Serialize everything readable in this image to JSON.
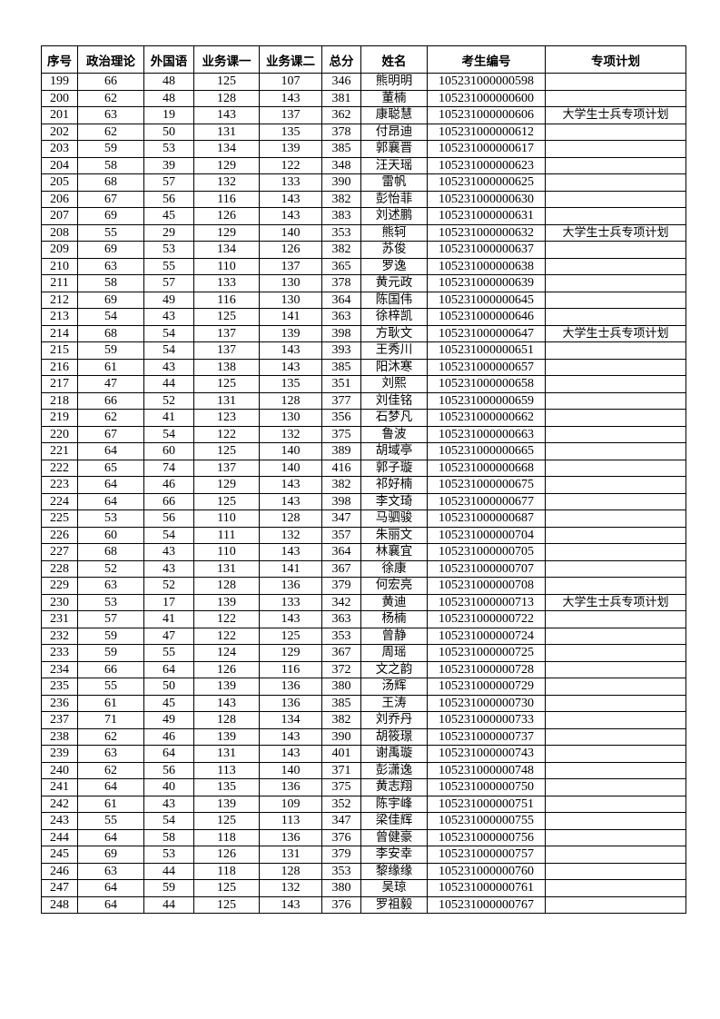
{
  "headers": [
    "序号",
    "政治理论",
    "外国语",
    "业务课一",
    "业务课二",
    "总分",
    "姓名",
    "考生编号",
    "专项计划"
  ],
  "rows": [
    [
      "199",
      "66",
      "48",
      "125",
      "107",
      "346",
      "熊明明",
      "105231000000598",
      ""
    ],
    [
      "200",
      "62",
      "48",
      "128",
      "143",
      "381",
      "董楠",
      "105231000000600",
      ""
    ],
    [
      "201",
      "63",
      "19",
      "143",
      "137",
      "362",
      "康聪慧",
      "105231000000606",
      "大学生士兵专项计划"
    ],
    [
      "202",
      "62",
      "50",
      "131",
      "135",
      "378",
      "付昂迪",
      "105231000000612",
      ""
    ],
    [
      "203",
      "59",
      "53",
      "134",
      "139",
      "385",
      "郭襄晋",
      "105231000000617",
      ""
    ],
    [
      "204",
      "58",
      "39",
      "129",
      "122",
      "348",
      "汪天瑶",
      "105231000000623",
      ""
    ],
    [
      "205",
      "68",
      "57",
      "132",
      "133",
      "390",
      "雷帆",
      "105231000000625",
      ""
    ],
    [
      "206",
      "67",
      "56",
      "116",
      "143",
      "382",
      "彭怡菲",
      "105231000000630",
      ""
    ],
    [
      "207",
      "69",
      "45",
      "126",
      "143",
      "383",
      "刘述鹏",
      "105231000000631",
      ""
    ],
    [
      "208",
      "55",
      "29",
      "129",
      "140",
      "353",
      "熊轲",
      "105231000000632",
      "大学生士兵专项计划"
    ],
    [
      "209",
      "69",
      "53",
      "134",
      "126",
      "382",
      "苏俊",
      "105231000000637",
      ""
    ],
    [
      "210",
      "63",
      "55",
      "110",
      "137",
      "365",
      "罗逸",
      "105231000000638",
      ""
    ],
    [
      "211",
      "58",
      "57",
      "133",
      "130",
      "378",
      "黄元政",
      "105231000000639",
      ""
    ],
    [
      "212",
      "69",
      "49",
      "116",
      "130",
      "364",
      "陈国伟",
      "105231000000645",
      ""
    ],
    [
      "213",
      "54",
      "43",
      "125",
      "141",
      "363",
      "徐梓凯",
      "105231000000646",
      ""
    ],
    [
      "214",
      "68",
      "54",
      "137",
      "139",
      "398",
      "方耿文",
      "105231000000647",
      "大学生士兵专项计划"
    ],
    [
      "215",
      "59",
      "54",
      "137",
      "143",
      "393",
      "王秀川",
      "105231000000651",
      ""
    ],
    [
      "216",
      "61",
      "43",
      "138",
      "143",
      "385",
      "阳沐寒",
      "105231000000657",
      ""
    ],
    [
      "217",
      "47",
      "44",
      "125",
      "135",
      "351",
      "刘熙",
      "105231000000658",
      ""
    ],
    [
      "218",
      "66",
      "52",
      "131",
      "128",
      "377",
      "刘佳铭",
      "105231000000659",
      ""
    ],
    [
      "219",
      "62",
      "41",
      "123",
      "130",
      "356",
      "石梦凡",
      "105231000000662",
      ""
    ],
    [
      "220",
      "67",
      "54",
      "122",
      "132",
      "375",
      "鲁波",
      "105231000000663",
      ""
    ],
    [
      "221",
      "64",
      "60",
      "125",
      "140",
      "389",
      "胡域亭",
      "105231000000665",
      ""
    ],
    [
      "222",
      "65",
      "74",
      "137",
      "140",
      "416",
      "郭子璇",
      "105231000000668",
      ""
    ],
    [
      "223",
      "64",
      "46",
      "129",
      "143",
      "382",
      "祁好楠",
      "105231000000675",
      ""
    ],
    [
      "224",
      "64",
      "66",
      "125",
      "143",
      "398",
      "李文琦",
      "105231000000677",
      ""
    ],
    [
      "225",
      "53",
      "56",
      "110",
      "128",
      "347",
      "马驷骏",
      "105231000000687",
      ""
    ],
    [
      "226",
      "60",
      "54",
      "111",
      "132",
      "357",
      "朱丽文",
      "105231000000704",
      ""
    ],
    [
      "227",
      "68",
      "43",
      "110",
      "143",
      "364",
      "林襄宜",
      "105231000000705",
      ""
    ],
    [
      "228",
      "52",
      "43",
      "131",
      "141",
      "367",
      "徐康",
      "105231000000707",
      ""
    ],
    [
      "229",
      "63",
      "52",
      "128",
      "136",
      "379",
      "何宏亮",
      "105231000000708",
      ""
    ],
    [
      "230",
      "53",
      "17",
      "139",
      "133",
      "342",
      "黄迪",
      "105231000000713",
      "大学生士兵专项计划"
    ],
    [
      "231",
      "57",
      "41",
      "122",
      "143",
      "363",
      "杨楠",
      "105231000000722",
      ""
    ],
    [
      "232",
      "59",
      "47",
      "122",
      "125",
      "353",
      "曾静",
      "105231000000724",
      ""
    ],
    [
      "233",
      "59",
      "55",
      "124",
      "129",
      "367",
      "周瑶",
      "105231000000725",
      ""
    ],
    [
      "234",
      "66",
      "64",
      "126",
      "116",
      "372",
      "文之韵",
      "105231000000728",
      ""
    ],
    [
      "235",
      "55",
      "50",
      "139",
      "136",
      "380",
      "汤辉",
      "105231000000729",
      ""
    ],
    [
      "236",
      "61",
      "45",
      "143",
      "136",
      "385",
      "王涛",
      "105231000000730",
      ""
    ],
    [
      "237",
      "71",
      "49",
      "128",
      "134",
      "382",
      "刘乔丹",
      "105231000000733",
      ""
    ],
    [
      "238",
      "62",
      "46",
      "139",
      "143",
      "390",
      "胡筱璟",
      "105231000000737",
      ""
    ],
    [
      "239",
      "63",
      "64",
      "131",
      "143",
      "401",
      "谢禹璇",
      "105231000000743",
      ""
    ],
    [
      "240",
      "62",
      "56",
      "113",
      "140",
      "371",
      "彭潇逸",
      "105231000000748",
      ""
    ],
    [
      "241",
      "64",
      "40",
      "135",
      "136",
      "375",
      "黄志翔",
      "105231000000750",
      ""
    ],
    [
      "242",
      "61",
      "43",
      "139",
      "109",
      "352",
      "陈宇峰",
      "105231000000751",
      ""
    ],
    [
      "243",
      "55",
      "54",
      "125",
      "113",
      "347",
      "梁佳辉",
      "105231000000755",
      ""
    ],
    [
      "244",
      "64",
      "58",
      "118",
      "136",
      "376",
      "曾健豪",
      "105231000000756",
      ""
    ],
    [
      "245",
      "69",
      "53",
      "126",
      "131",
      "379",
      "李安幸",
      "105231000000757",
      ""
    ],
    [
      "246",
      "63",
      "44",
      "118",
      "128",
      "353",
      "黎缘缘",
      "105231000000760",
      ""
    ],
    [
      "247",
      "64",
      "59",
      "125",
      "132",
      "380",
      "吴琼",
      "105231000000761",
      ""
    ],
    [
      "248",
      "64",
      "44",
      "125",
      "143",
      "376",
      "罗祖毅",
      "105231000000767",
      ""
    ]
  ]
}
